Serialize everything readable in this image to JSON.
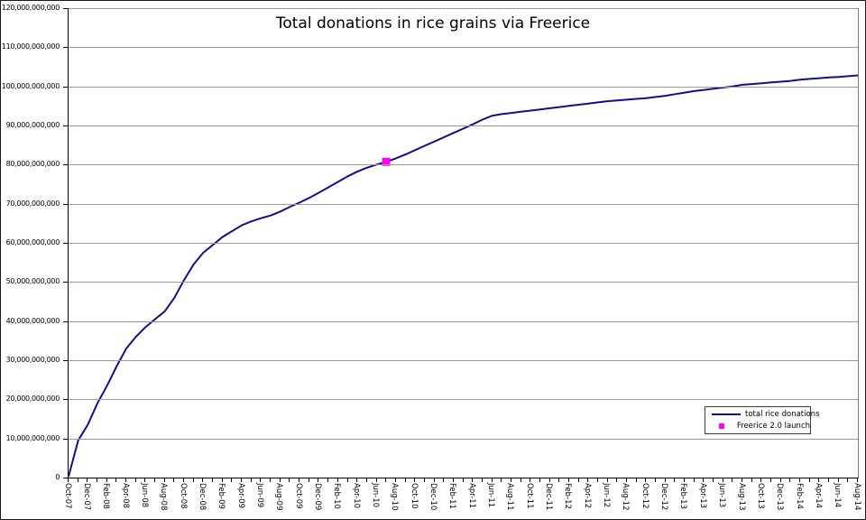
{
  "chart_data": {
    "type": "line",
    "title": "Total donations in rice grains via Freerice",
    "xlabel": "",
    "ylabel": "",
    "unit": "rice grains",
    "grid": "horizontal",
    "legend_position": "bottom-right",
    "ylim": [
      0,
      120000000000
    ],
    "y_tick_step": 10000000000,
    "y_tick_labels": [
      "120,000,000,000",
      "110,000,000,000",
      "100,000,000,000",
      "90,000,000,000",
      "80,000,000,000",
      "70,000,000,000",
      "60,000,000,000",
      "50,000,000,000",
      "40,000,000,000",
      "30,000,000,000",
      "20,000,000,000",
      "10,000,000,000",
      "0"
    ],
    "x_start": "Oct-07",
    "x_end": "Aug-14",
    "x_step_months": 1,
    "x_tick_labels": [
      "Oct-07",
      "Dec-07",
      "Feb-08",
      "Apr-08",
      "Jun-08",
      "Aug-08",
      "Oct-08",
      "Dec-08",
      "Feb-09",
      "Apr-09",
      "Jun-09",
      "Aug-09",
      "Oct-09",
      "Dec-09",
      "Feb-10",
      "Apr-10",
      "Jun-10",
      "Aug-10",
      "Oct-10",
      "Dec-10",
      "Feb-11",
      "Apr-11",
      "Jun-11",
      "Aug-11",
      "Oct-11",
      "Dec-11",
      "Feb-12",
      "Apr-12",
      "Jun-12",
      "Aug-12",
      "Oct-12",
      "Dec-12",
      "Feb-13",
      "Apr-13",
      "Jun-13",
      "Aug-13",
      "Oct-13",
      "Dec-13",
      "Feb-14",
      "Apr-14",
      "Jun-14",
      "Aug-14"
    ],
    "series": [
      {
        "name": "total rice donations",
        "color": "#10108c",
        "values_billions": [
          0.3,
          9.5,
          13.5,
          19,
          23.5,
          28.5,
          33,
          36,
          38.5,
          40.5,
          42.5,
          46,
          50.5,
          54.5,
          57.5,
          59.5,
          61.5,
          63,
          64.5,
          65.5,
          66.3,
          67,
          68,
          69.2,
          70.3,
          71.5,
          72.8,
          74.2,
          75.6,
          77,
          78.2,
          79.2,
          80,
          80.7,
          81.6,
          82.6,
          83.7,
          84.8,
          85.9,
          87,
          88.1,
          89.2,
          90.3,
          91.5,
          92.5,
          92.9,
          93.2,
          93.5,
          93.8,
          94.1,
          94.4,
          94.7,
          95,
          95.3,
          95.6,
          95.9,
          96.2,
          96.4,
          96.6,
          96.8,
          97,
          97.3,
          97.6,
          98,
          98.4,
          98.8,
          99.1,
          99.4,
          99.7,
          100,
          100.4,
          100.6,
          100.8,
          101,
          101.2,
          101.4,
          101.7,
          101.9,
          102.1,
          102.3,
          102.4,
          102.6,
          102.8
        ]
      }
    ],
    "annotations": [
      {
        "name": "Freerice 2.0 launch",
        "marker": "square",
        "color": "#ff00ff",
        "x_label": "Jul-10",
        "month_index": 33,
        "value_billions": 80.7
      }
    ]
  },
  "legend": {
    "items": [
      {
        "label": "total rice donations",
        "swatch": "line",
        "color": "#10108c"
      },
      {
        "label": "Freerice 2.0 launch",
        "swatch": "square",
        "color": "#ff00ff"
      }
    ]
  }
}
